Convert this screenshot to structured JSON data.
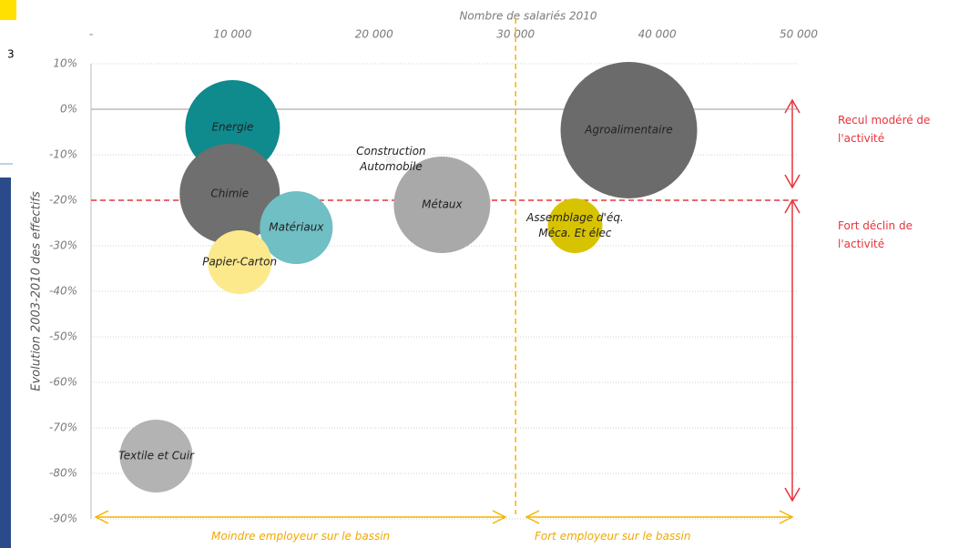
{
  "chart_data": {
    "type": "bubble",
    "x_label": "Nombre de salariés 2010",
    "y_label": "Evolution 2003-2010 des effectifs",
    "categories": [
      "Energie",
      "Chimie",
      "Matériaux",
      "Papier-Carton",
      "Construction Automobile",
      "Métaux",
      "Assemblage d'éq. Méca. Et élec",
      "Agroalimentaire",
      "Textile et Cuir"
    ],
    "x": [
      10000,
      9800,
      14500,
      10500,
      21200,
      24800,
      34200,
      38000,
      4600
    ],
    "values": [
      -4,
      -18.6,
      -26,
      -33.6,
      -11,
      -21,
      -25.6,
      -4.6,
      -76.2
    ],
    "sizes": [
      52,
      55,
      40,
      35,
      6,
      53,
      30,
      75,
      40
    ],
    "colors": [
      "#0f8a8d",
      "#6f6f6f",
      "#6fbfc4",
      "#fbe98c",
      "#f2f2f2",
      "#a9a9a9",
      "#d8c300",
      "#6b6b6b",
      "#b3b3b3"
    ],
    "xlim": [
      0,
      50000
    ],
    "xticks": [
      {
        "value": 0,
        "label": "-"
      },
      {
        "value": 10000,
        "label": "10 000"
      },
      {
        "value": 20000,
        "label": "20 000"
      },
      {
        "value": 30000,
        "label": "30 000"
      },
      {
        "value": 40000,
        "label": "40 000"
      },
      {
        "value": 50000,
        "label": "50 000"
      }
    ],
    "ylim": [
      10,
      -90
    ],
    "yticks": [
      {
        "value": 10,
        "label": "10%"
      },
      {
        "value": 0,
        "label": "0%"
      },
      {
        "value": -10,
        "label": "-10%"
      },
      {
        "value": -20,
        "label": "-20%"
      },
      {
        "value": -30,
        "label": "-30%"
      },
      {
        "value": -40,
        "label": "-40%"
      },
      {
        "value": -50,
        "label": "-50%"
      },
      {
        "value": -60,
        "label": "-60%"
      },
      {
        "value": -70,
        "label": "-70%"
      },
      {
        "value": -80,
        "label": "-80%"
      },
      {
        "value": -90,
        "label": "-90%"
      }
    ],
    "grid": true,
    "hline": -20,
    "vline": 30000,
    "annotations": {
      "upper_right": "Recul modéré de l'activité",
      "lower_right": "Fort déclin de l'activité",
      "bottom_left": "Moindre employeur sur le bassin",
      "bottom_right": "Fort employeur sur le bassin"
    }
  },
  "left_fragment_text": "3"
}
